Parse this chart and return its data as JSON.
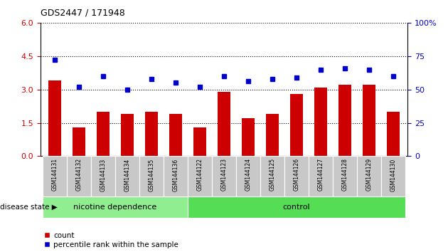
{
  "title": "GDS2447 / 171948",
  "samples": [
    "GSM144131",
    "GSM144132",
    "GSM144133",
    "GSM144134",
    "GSM144135",
    "GSM144136",
    "GSM144122",
    "GSM144123",
    "GSM144124",
    "GSM144125",
    "GSM144126",
    "GSM144127",
    "GSM144128",
    "GSM144129",
    "GSM144130"
  ],
  "counts": [
    3.4,
    1.3,
    2.0,
    1.9,
    2.0,
    1.9,
    1.3,
    2.9,
    1.7,
    1.9,
    2.8,
    3.1,
    3.2,
    3.2,
    2.0
  ],
  "percentiles": [
    72,
    52,
    60,
    50,
    58,
    55,
    52,
    60,
    56,
    58,
    59,
    65,
    66,
    65,
    60
  ],
  "bar_color": "#cc0000",
  "dot_color": "#0000cc",
  "left_ylim": [
    0,
    6
  ],
  "right_ylim": [
    0,
    100
  ],
  "left_yticks": [
    0,
    1.5,
    3.0,
    4.5,
    6
  ],
  "right_yticks": [
    0,
    25,
    50,
    75,
    100
  ],
  "groups": [
    {
      "label": "nicotine dependence",
      "start": 0,
      "end": 6,
      "color": "#90EE90"
    },
    {
      "label": "control",
      "start": 6,
      "end": 15,
      "color": "#55DD55"
    }
  ],
  "group_label": "disease state",
  "legend_count": "count",
  "legend_percentile": "percentile rank within the sample",
  "background_color": "#ffffff",
  "tick_area_color": "#c8c8c8",
  "gap_color": "#ffffff"
}
